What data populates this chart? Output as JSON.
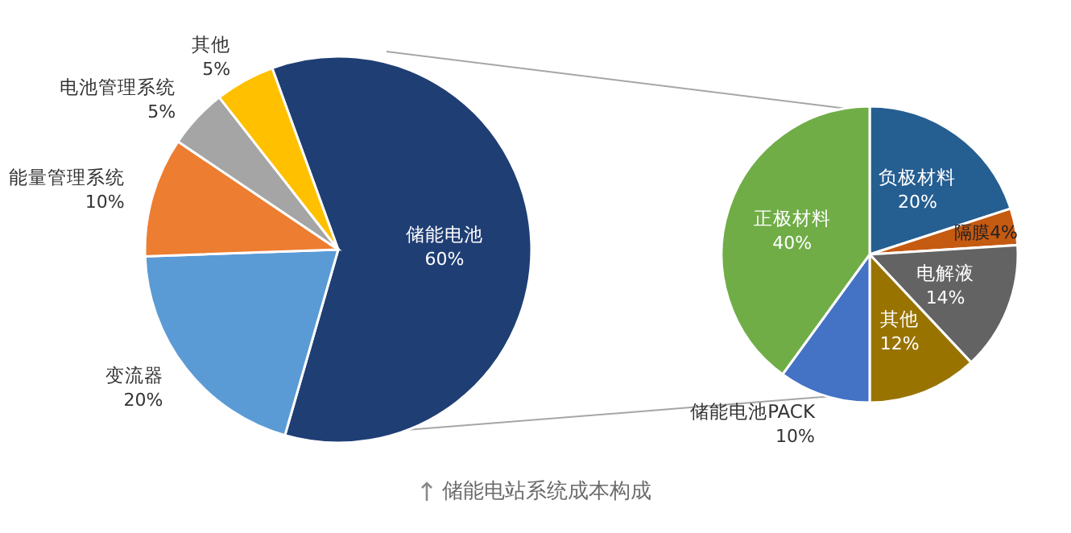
{
  "chart_data": [
    {
      "type": "pie",
      "categories": [
        "储能电池",
        "变流器",
        "能量管理系统",
        "电池管理系统",
        "其他"
      ],
      "values": [
        60,
        20,
        10,
        5,
        5
      ],
      "colors": [
        "#1f3e74",
        "#5b9bd5",
        "#ed7d31",
        "#a5a5a5",
        "#ffc000"
      ],
      "value_labels": [
        "60%",
        "20%",
        "10%",
        "5%",
        "5%"
      ],
      "annotations": [
        "储能电站系统成本构成"
      ]
    },
    {
      "type": "pie",
      "categories": [
        "负极材料",
        "隔膜",
        "电解液",
        "其他",
        "储能电池PACK",
        "正极材料"
      ],
      "values": [
        20,
        4,
        14,
        12,
        10,
        40
      ],
      "colors": [
        "#255e91",
        "#c55a11",
        "#636363",
        "#997300",
        "#4472c4",
        "#70ad47"
      ],
      "value_labels": [
        "20%",
        "4%",
        "14%",
        "12%",
        "10%",
        "40%"
      ]
    }
  ]
}
